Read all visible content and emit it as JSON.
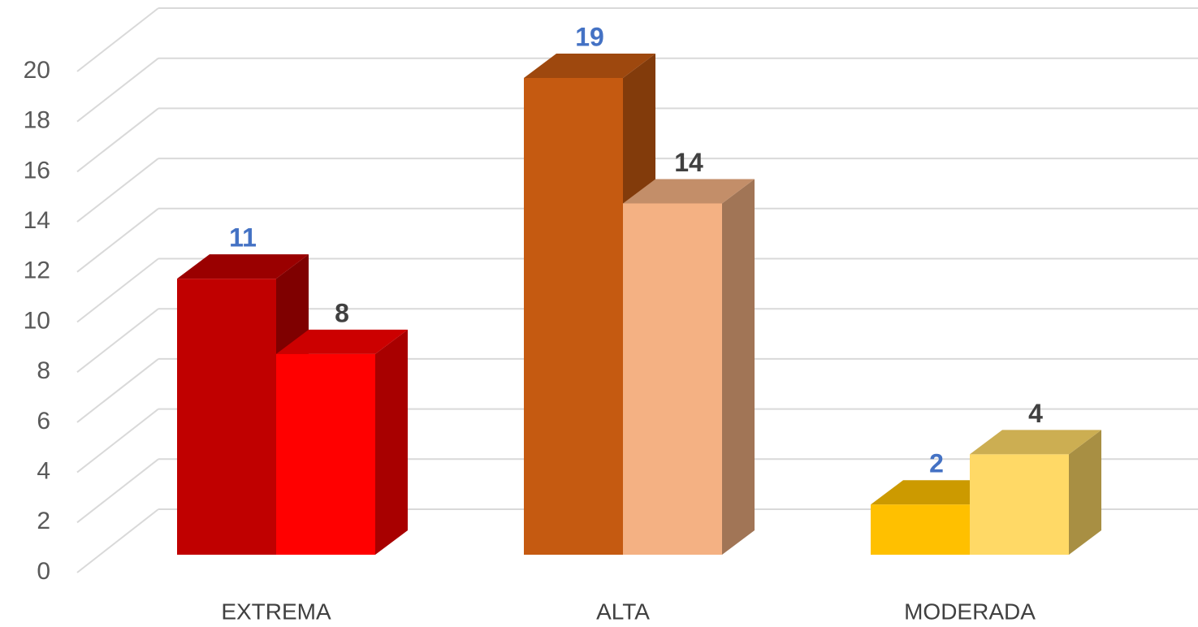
{
  "chart_data": {
    "type": "bar3d",
    "categories": [
      "EXTREMA",
      "ALTA",
      "MODERADA"
    ],
    "series": [
      {
        "values": [
          11,
          19,
          2
        ],
        "colors": [
          "#c00000",
          "#c55a11",
          "#ffc000"
        ],
        "label_color": "#4472c4"
      },
      {
        "values": [
          8,
          14,
          4
        ],
        "colors": [
          "#ff0000",
          "#f4b183",
          "#ffd966"
        ],
        "label_color": "#404040"
      }
    ],
    "ylim": [
      0,
      20
    ],
    "yticks": [
      0,
      2,
      4,
      6,
      8,
      10,
      12,
      14,
      16,
      18,
      20
    ],
    "grid": true
  }
}
